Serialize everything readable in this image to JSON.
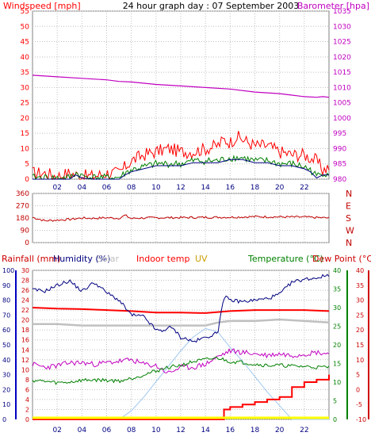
{
  "header": {
    "left_title": "Windspeed [mph]",
    "center_title": "24 hour graph day : 07 September 2003",
    "right_title": "Barometer [hpa]"
  },
  "colors": {
    "windspeed": "#ff0000",
    "windspeed_avg": "#008000",
    "barometer": "#c000c0",
    "direction": "#c00000",
    "rainfall": "#cc0000",
    "humidity": "#000080",
    "solar": "#c0c0c0",
    "indoor_temp": "#ff0000",
    "uv": "#c8a000",
    "temperature": "#008000",
    "dew_point": "#cc0000",
    "dew_line": "#c000c0",
    "uv_line": "#a0c8f0",
    "rain_line": "#ff0000",
    "yellow_base": "#ffff00",
    "grid": "#c0c0c0",
    "axis_dark": "#000080"
  },
  "chart_data": [
    {
      "id": "wind_baro",
      "type": "line",
      "title": "24 hour graph day : 07 September 2003",
      "ylabel_left": "Windspeed [mph]",
      "ylabel_right": "Barometer [hpa]",
      "ylim_left": [
        0,
        55
      ],
      "ylim_right": [
        980,
        1035
      ],
      "left_ticks": [
        "0",
        "5",
        "10",
        "15",
        "20",
        "25",
        "30",
        "35",
        "40",
        "45",
        "50",
        "55"
      ],
      "right_ticks": [
        "980",
        "985",
        "990",
        "995",
        "1000",
        "1005",
        "1010",
        "1015",
        "1020",
        "1025",
        "1030",
        "1035"
      ],
      "x_ticks": [
        "02",
        "04",
        "06",
        "08",
        "10",
        "12",
        "14",
        "16",
        "18",
        "20",
        "22"
      ],
      "grid": true,
      "series": [
        {
          "id": "gust",
          "x": [
            0,
            1,
            2,
            3,
            4,
            5,
            6,
            7,
            7.5,
            8,
            9,
            10,
            11,
            12,
            13,
            14,
            15,
            15.5,
            16,
            16.5,
            17,
            18,
            19,
            20,
            21,
            22,
            23,
            23.5,
            24
          ],
          "values": [
            2,
            2,
            1,
            2,
            1,
            1,
            2,
            2,
            4,
            6,
            8,
            9,
            10,
            9,
            9,
            10,
            11,
            13,
            12,
            14,
            13,
            11,
            11,
            9,
            8,
            8,
            6,
            3,
            4
          ]
        },
        {
          "id": "average",
          "x": [
            0,
            1,
            2,
            3,
            3.5,
            4,
            5,
            6,
            7,
            7.5,
            8,
            9,
            10,
            11,
            12,
            13,
            14,
            15,
            16,
            17,
            18,
            19,
            20,
            21,
            22,
            22.5,
            23,
            23.5,
            24
          ],
          "values": [
            0.5,
            0.5,
            0.3,
            0.5,
            2,
            1,
            0.5,
            0.5,
            0.5,
            2,
            3,
            4,
            5,
            5,
            5,
            6,
            6,
            6,
            7,
            7,
            6,
            6,
            5,
            5,
            4,
            3,
            1,
            2,
            2
          ]
        },
        {
          "id": "barometer",
          "x": [
            0,
            2,
            4,
            6,
            7,
            8,
            10,
            12,
            14,
            16,
            18,
            20,
            21,
            22,
            23,
            23.5,
            24
          ],
          "values": [
            1014,
            1013.5,
            1013,
            1012.5,
            1012,
            1011.8,
            1011,
            1010.5,
            1010,
            1009.5,
            1008.5,
            1008,
            1007.5,
            1007,
            1006.8,
            1007,
            1006.8
          ]
        }
      ]
    },
    {
      "id": "direction",
      "type": "line",
      "ylim": [
        0,
        360
      ],
      "y_ticks": [
        "0",
        "90",
        "180",
        "270",
        "360"
      ],
      "compass_labels": [
        "N",
        "W",
        "S",
        "E",
        "N"
      ],
      "grid": true,
      "series": [
        {
          "id": "wind_direction",
          "x": [
            0,
            1,
            2,
            3,
            4,
            5,
            6,
            7,
            7.5,
            8,
            8.5,
            9,
            10,
            12,
            14,
            16,
            18,
            20,
            22,
            24
          ],
          "values": [
            185,
            160,
            165,
            170,
            180,
            178,
            182,
            178,
            200,
            175,
            180,
            180,
            182,
            183,
            185,
            186,
            190,
            188,
            187,
            180
          ]
        }
      ]
    },
    {
      "id": "climate",
      "type": "line",
      "legend": [
        "Rainfall (mm)",
        "Humidity (%)",
        "Solar",
        "Indoor temp",
        "UV",
        "Temperature (°C)",
        "Dew Point (°C)"
      ],
      "ylim_humidity": [
        0,
        100
      ],
      "ylim_rain": [
        0,
        30
      ],
      "ylim_temp": [
        0,
        40
      ],
      "ylim_dew": [
        -10,
        40
      ],
      "humidity_ticks": [
        "0",
        "10",
        "20",
        "30",
        "40",
        "50",
        "60",
        "70",
        "80",
        "90",
        "100"
      ],
      "rain_ticks": [
        "0",
        "2",
        "4",
        "6",
        "8",
        "10",
        "12",
        "14",
        "16",
        "18",
        "20",
        "22",
        "24",
        "26",
        "28",
        "30"
      ],
      "temp_ticks": [
        "0",
        "5",
        "10",
        "15",
        "20",
        "25",
        "30",
        "35",
        "40"
      ],
      "dew_ticks": [
        "-10",
        "-5",
        "0",
        "5",
        "10",
        "15",
        "20",
        "25",
        "30",
        "35",
        "40"
      ],
      "x_ticks": [
        "02",
        "04",
        "06",
        "08",
        "10",
        "12",
        "14",
        "16",
        "18",
        "20",
        "22"
      ],
      "grid": true,
      "series": [
        {
          "id": "humidity",
          "x": [
            0,
            1,
            2,
            3,
            4,
            5,
            6,
            7,
            8,
            9,
            10,
            10.5,
            11,
            11.5,
            12,
            12.5,
            13,
            14,
            15,
            15.3,
            15.6,
            16,
            17,
            18,
            19,
            20,
            21,
            22,
            23,
            24
          ],
          "values": [
            87,
            86,
            90,
            93,
            86,
            92,
            85,
            80,
            70,
            69,
            60,
            59,
            62,
            60,
            55,
            54,
            52,
            55,
            58,
            75,
            82,
            80,
            79,
            80,
            81,
            84,
            92,
            94,
            95,
            97
          ]
        },
        {
          "id": "solar",
          "x": [
            0,
            2,
            4,
            6,
            8,
            10,
            12,
            14,
            15,
            16,
            18,
            20,
            22,
            24
          ],
          "values": [
            64,
            64,
            63,
            63,
            63,
            63,
            63,
            63,
            65,
            66,
            66,
            67,
            66,
            65
          ]
        },
        {
          "id": "indoor_temp",
          "x": [
            0,
            2,
            4,
            6,
            8,
            10,
            12,
            14,
            16,
            18,
            20,
            22,
            24
          ],
          "values": [
            22.5,
            22.3,
            22.2,
            22.0,
            21.8,
            21.5,
            21.5,
            21.4,
            21.8,
            22.0,
            22.0,
            22.0,
            21.8
          ]
        },
        {
          "id": "temperature",
          "x": [
            0,
            1,
            2,
            3,
            4,
            5,
            6,
            7,
            8,
            9,
            10,
            11,
            12,
            13,
            14,
            15,
            16,
            17,
            18,
            19,
            20,
            21,
            22,
            23,
            24
          ],
          "values": [
            10.5,
            10.2,
            9.8,
            10.0,
            10.5,
            10.6,
            10.5,
            10.3,
            11,
            12,
            13,
            14,
            14.5,
            15.5,
            16,
            16.5,
            15.5,
            15.3,
            14.8,
            14.5,
            14.5,
            14.3,
            14.2,
            14,
            14
          ]
        },
        {
          "id": "dew_line",
          "x": [
            0,
            1,
            2,
            3,
            4,
            5,
            6,
            7,
            8,
            9,
            10,
            11,
            12,
            13,
            14,
            15,
            16,
            17,
            18,
            19,
            20,
            21,
            22,
            23,
            24
          ],
          "values": [
            37,
            35,
            36,
            38,
            38,
            37,
            38,
            39,
            40,
            37,
            36,
            31,
            35,
            35,
            37,
            42,
            46,
            45,
            44,
            43,
            44,
            43,
            44,
            45,
            44
          ]
        },
        {
          "id": "uv",
          "x": [
            0,
            7,
            8,
            9,
            10,
            11,
            12,
            13,
            14,
            15,
            16,
            17,
            18,
            19,
            20,
            21,
            22,
            24
          ],
          "values": [
            0,
            0,
            0.5,
            1.3,
            2.2,
            3.1,
            4,
            4.8,
            5.3,
            5.1,
            4.2,
            3.4,
            2.5,
            1.6,
            0.8,
            0,
            0,
            0
          ]
        },
        {
          "id": "rainfall",
          "x": [
            0,
            15.5,
            15.5,
            16,
            17,
            18,
            19,
            20,
            21,
            22,
            23,
            24
          ],
          "values": [
            0,
            0,
            2,
            2.5,
            3,
            3.5,
            4,
            4.5,
            6.5,
            7.5,
            8,
            9
          ]
        }
      ]
    }
  ]
}
